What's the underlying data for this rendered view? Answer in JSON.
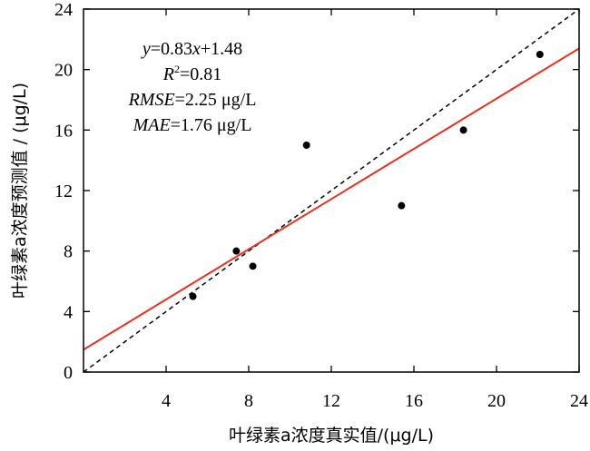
{
  "chart_data": {
    "type": "scatter",
    "title": "",
    "xlabel": "叶绿素a浓度真实值/(μg/L)",
    "ylabel": "叶绿素a浓度预测值 / (μg/L)",
    "xlim": [
      0,
      24
    ],
    "ylim": [
      0,
      24
    ],
    "xticks": [
      4,
      8,
      12,
      16,
      20,
      24
    ],
    "yticks": [
      0,
      4,
      8,
      12,
      16,
      20,
      24
    ],
    "points": [
      {
        "x": 5.3,
        "y": 5.0
      },
      {
        "x": 7.4,
        "y": 8.0
      },
      {
        "x": 8.2,
        "y": 7.0
      },
      {
        "x": 10.8,
        "y": 15.0
      },
      {
        "x": 15.4,
        "y": 11.0
      },
      {
        "x": 18.4,
        "y": 16.0
      },
      {
        "x": 22.1,
        "y": 21.0
      }
    ],
    "fit_line": {
      "slope": 0.83,
      "intercept": 1.48,
      "color": "#e8321e"
    },
    "reference_line": {
      "slope": 1,
      "intercept": 0,
      "style": "dashed",
      "color": "#000000"
    },
    "grid": false,
    "annotations": {
      "equation": {
        "y_var": "y",
        "eq_mid": "=0.83",
        "x_var": "x",
        "eq_end": "+1.48"
      },
      "r2": {
        "var": "R",
        "sup": "2",
        "value": "=0.81"
      },
      "rmse": {
        "var": "RMSE",
        "value": "=2.25 μg/L"
      },
      "mae": {
        "var": "MAE",
        "value": "=1.76 μg/L"
      }
    }
  }
}
